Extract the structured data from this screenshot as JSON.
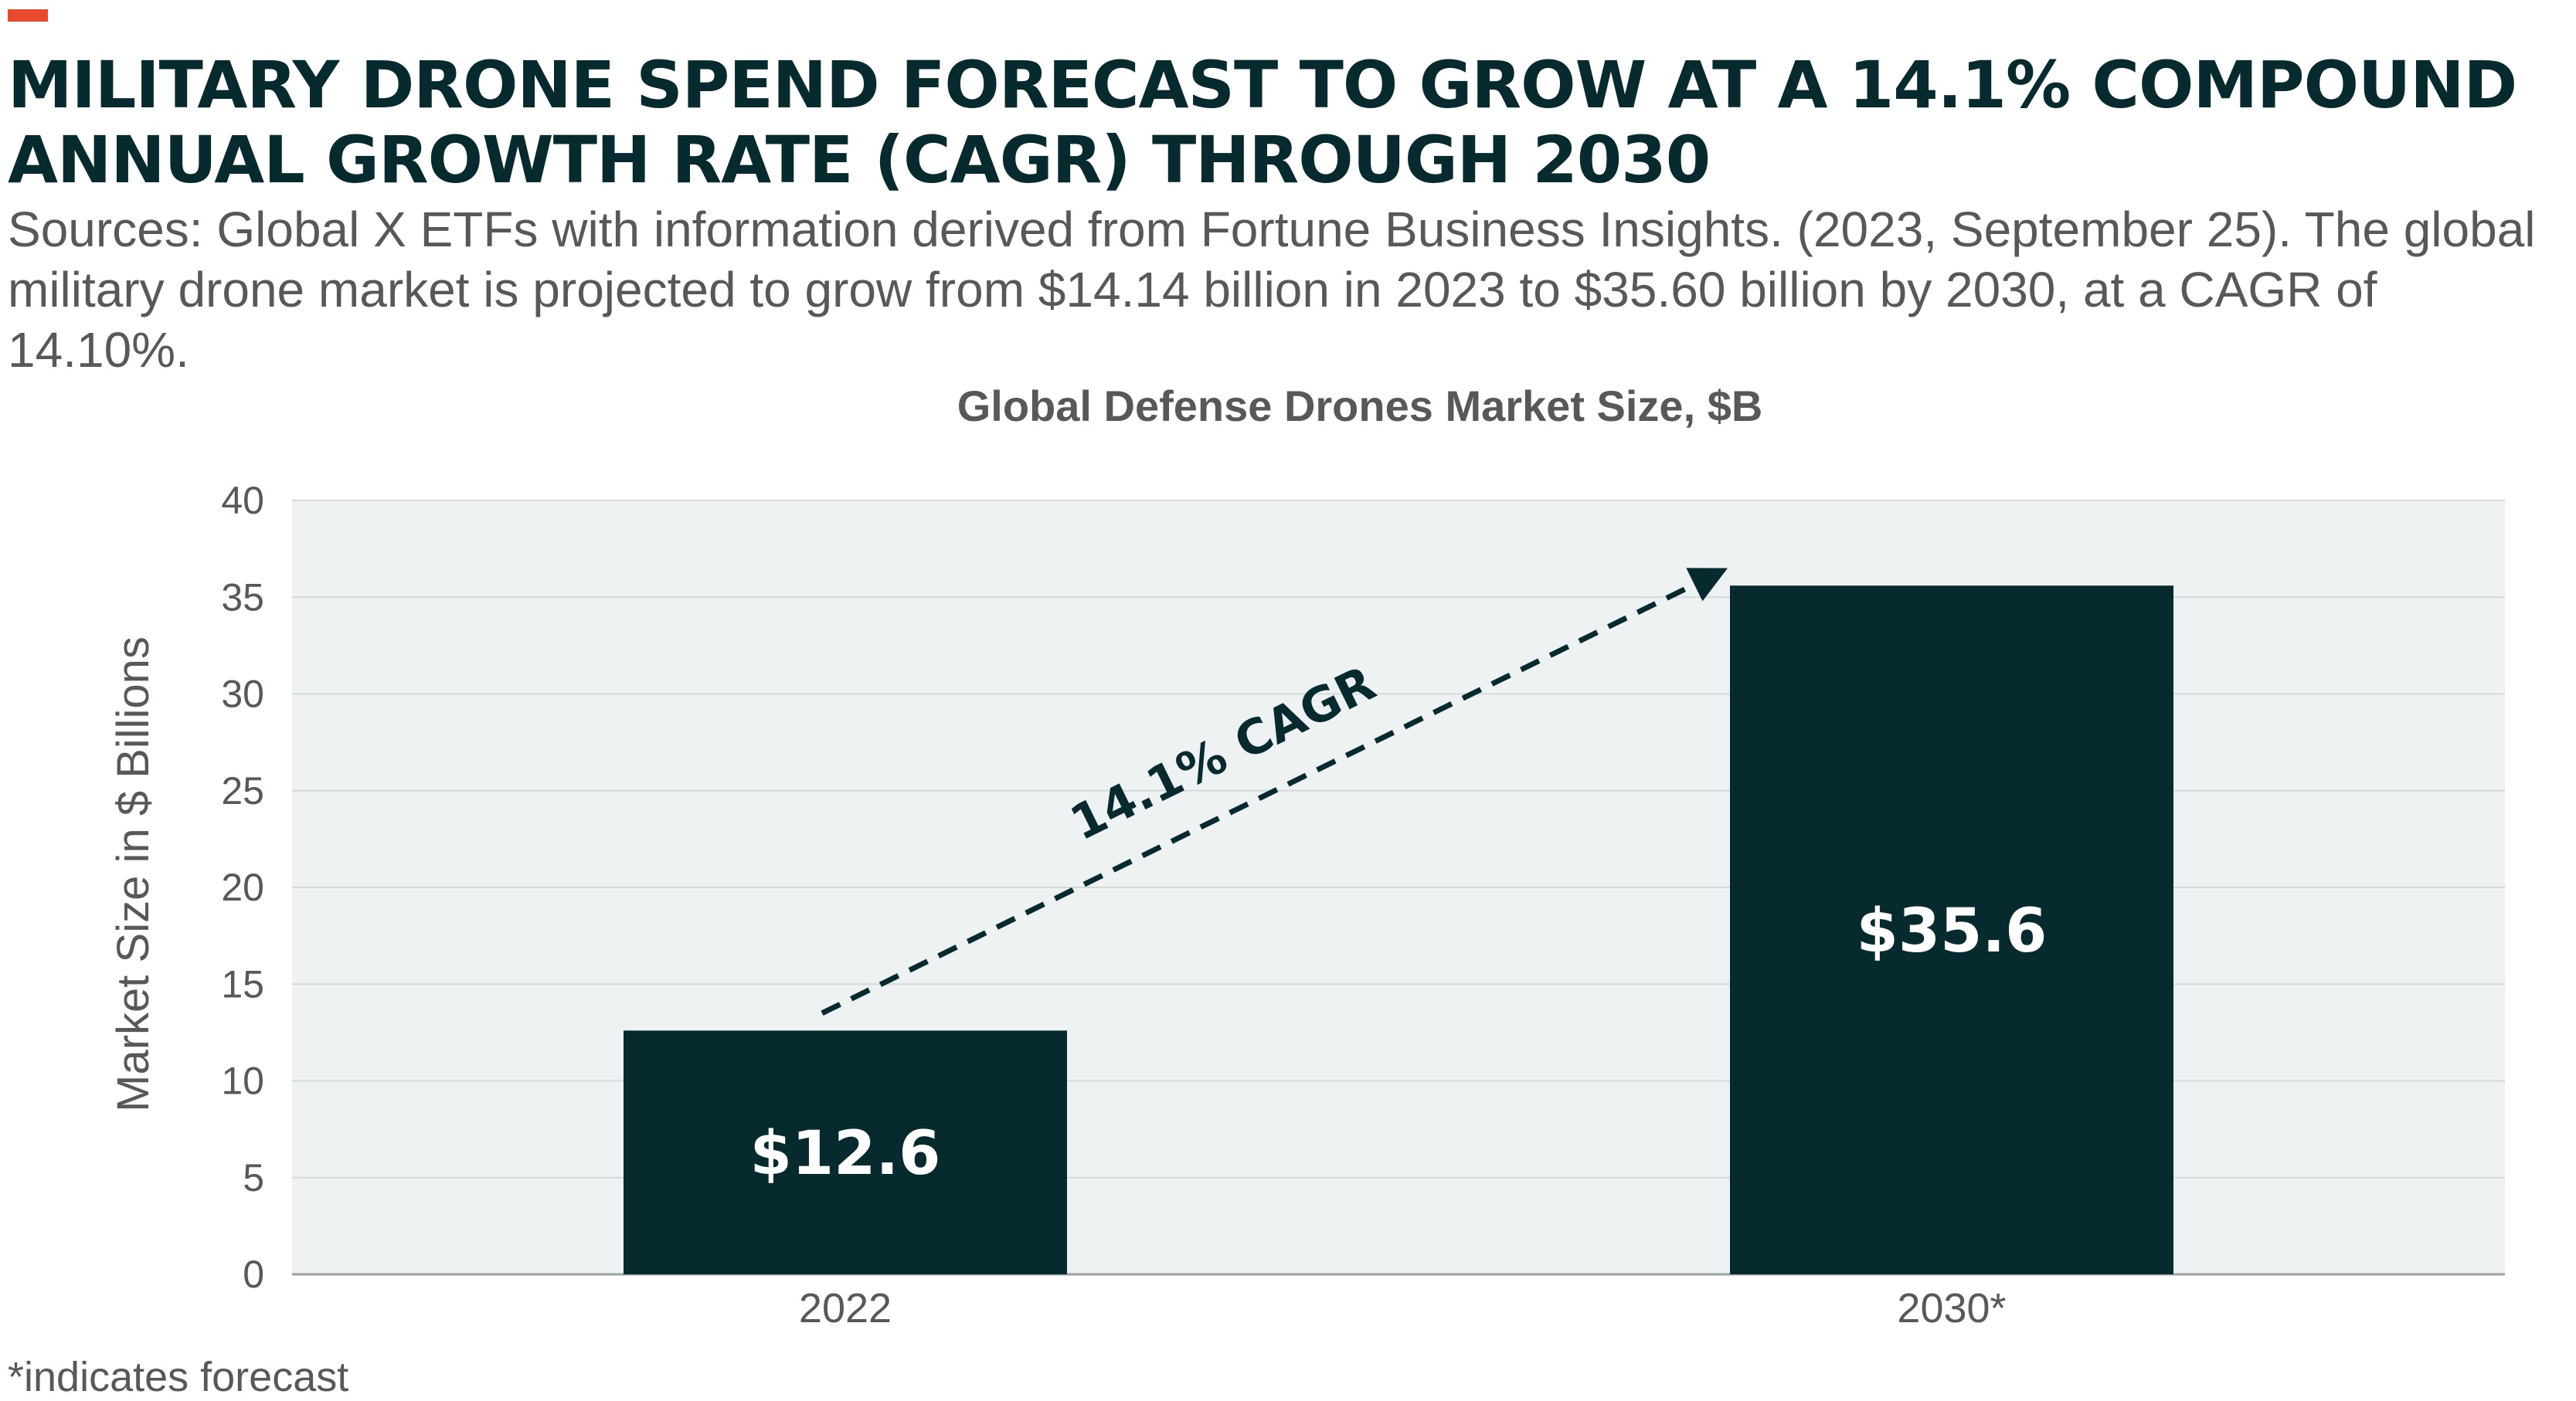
{
  "header": {
    "title": "MILITARY DRONE SPEND FORECAST TO GROW AT A 14.1% COMPOUND ANNUAL GROWTH RATE (CAGR) THROUGH 2030",
    "subtitle": "Sources: Global X ETFs with information derived from Fortune Business Insights. (2023, September 25). The global military drone market is projected to grow from $14.14 billion in 2023 to $35.60 billion by 2030, at a CAGR of 14.10%."
  },
  "footnote": "*indicates forecast",
  "colors": {
    "accent": "#e84a2e",
    "bar": "#062a2e",
    "plot_bg": "#eef2f3",
    "text": "#585858",
    "title": "#062a2e"
  },
  "chart_data": {
    "type": "bar",
    "title": "Global Defense Drones Market Size, $B",
    "ylabel": "Market Size in $ Billions",
    "xlabel": "",
    "categories": [
      "2022",
      "2030*"
    ],
    "values": [
      12.6,
      35.6
    ],
    "data_labels": [
      "$12.6",
      "$35.6"
    ],
    "ylim": [
      0,
      40
    ],
    "yticks": [
      0,
      5,
      10,
      15,
      20,
      25,
      30,
      35,
      40
    ],
    "grid": true,
    "annotation": {
      "text": "14.1% CAGR",
      "style": "dashed-arrow",
      "from": {
        "category": "2022",
        "value": 13.5
      },
      "to": {
        "category": "2030*",
        "value": 36.5
      }
    }
  }
}
